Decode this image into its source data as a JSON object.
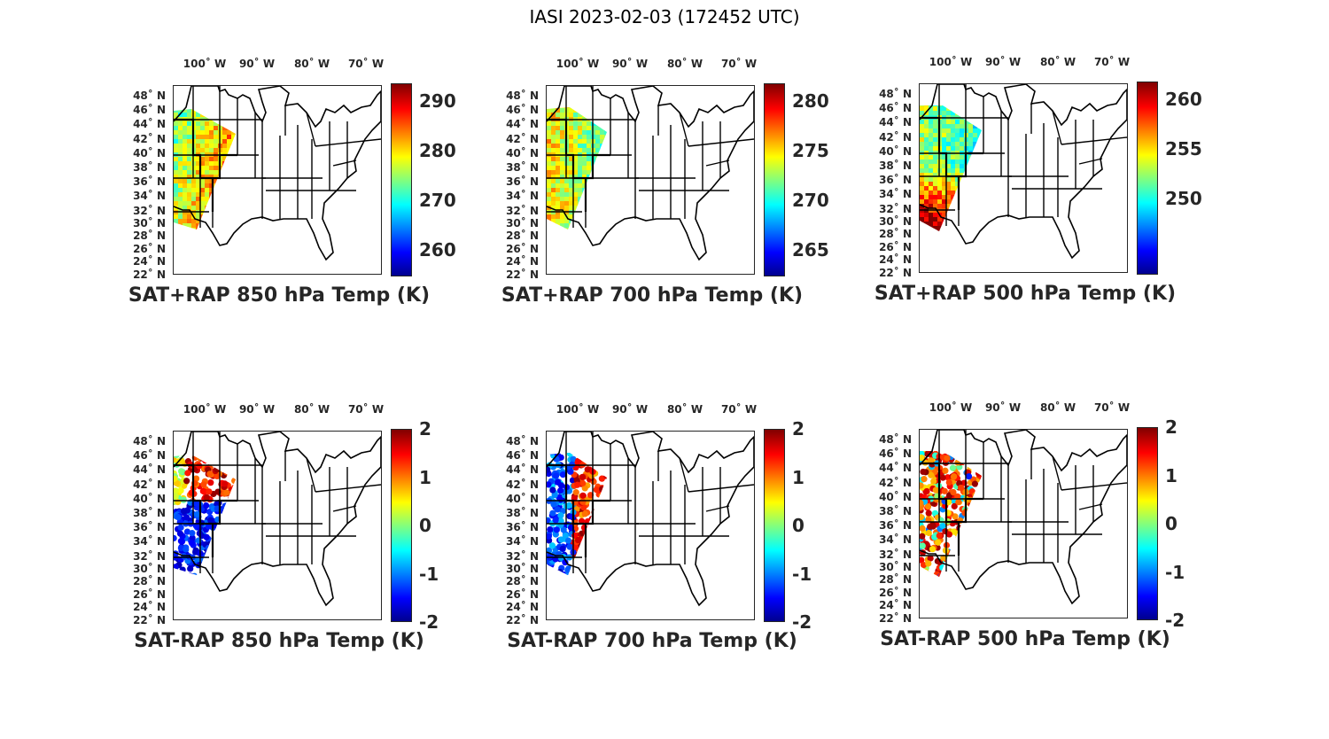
{
  "figure_title": "IASI 2023-02-03 (172452 UTC)",
  "lon_labels": [
    "100˚ W",
    "90˚ W",
    "80˚ W",
    "70˚ W"
  ],
  "lat_labels": [
    "48˚ N",
    "46˚ N",
    "44˚ N",
    "42˚ N",
    "40˚ N",
    "38˚ N",
    "36˚ N",
    "34˚ N",
    "32˚ N",
    "30˚ N",
    "28˚ N",
    "26˚ N",
    "24˚ N",
    "22˚ N"
  ],
  "colormap": "jet",
  "panels": [
    {
      "title": "SAT+RAP 850 hPa Temp (K)",
      "colorbar_ticks": [
        "290",
        "280",
        "270",
        "260"
      ],
      "kind": "abs",
      "pattern": "warm-east"
    },
    {
      "title": "SAT+RAP 700 hPa Temp (K)",
      "colorbar_ticks": [
        "280",
        "275",
        "270",
        "265"
      ],
      "kind": "abs",
      "pattern": "cool"
    },
    {
      "title": "SAT+RAP 500 hPa Temp (K)",
      "colorbar_ticks": [
        "260",
        "255",
        "250"
      ],
      "kind": "abs",
      "pattern": "warm-south"
    },
    {
      "title": "SAT-RAP 850 hPa Temp (K)",
      "colorbar_ticks": [
        "2",
        "1",
        "0",
        "-1",
        "-2"
      ],
      "kind": "diff",
      "pattern": "north-red-south-blue"
    },
    {
      "title": "SAT-RAP 700 hPa Temp (K)",
      "colorbar_ticks": [
        "2",
        "1",
        "0",
        "-1",
        "-2"
      ],
      "kind": "diff",
      "pattern": "west-blue-east-red"
    },
    {
      "title": "SAT-RAP 500 hPa Temp (K)",
      "colorbar_ticks": [
        "2",
        "1",
        "0",
        "-1",
        "-2"
      ],
      "kind": "diff",
      "pattern": "mostly-red"
    }
  ]
}
